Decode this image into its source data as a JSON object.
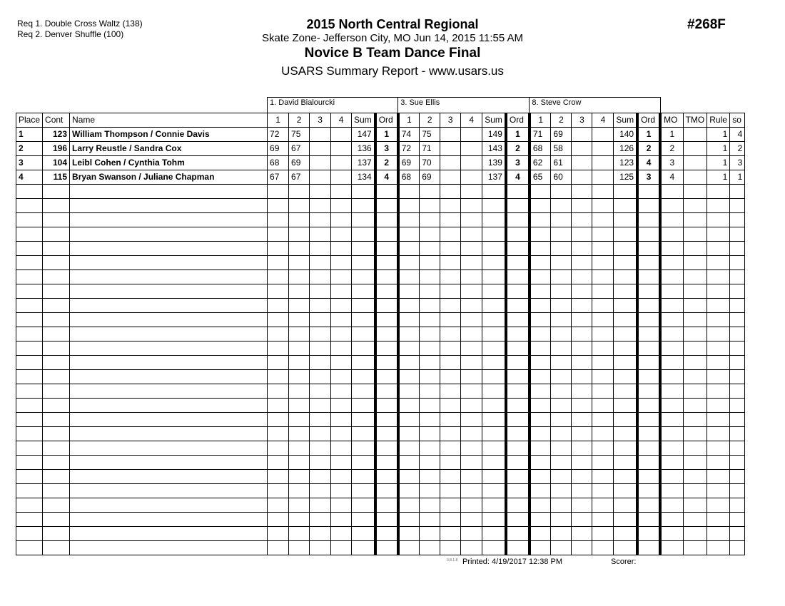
{
  "requirements": [
    "Req  1.  Double Cross Waltz (138)",
    "Req  2.  Denver Shuffle (100)"
  ],
  "header": {
    "title": "2015 North Central Regional",
    "location": "Skate Zone- Jefferson City, MO  Jun 14, 2015  11:55 AM",
    "event": "Novice B Team Dance Final",
    "report": "USARS Summary Report - www.usars.us",
    "event_number": "#268F"
  },
  "judges": [
    "1.  David Bialourcki",
    "3.  Sue Ellis",
    "8.  Steve  Crow"
  ],
  "columns": {
    "place": "Place",
    "cont": "Cont",
    "name": "Name",
    "judge_cols": [
      "1",
      "2",
      "3",
      "4",
      "Sum",
      "Ord"
    ],
    "mo": "MO",
    "tmo": "TMO",
    "rule": "Rule",
    "so": "so"
  },
  "rows": [
    {
      "place": "1",
      "cont": "123",
      "name": "William Thompson / Connie Davis",
      "judges": [
        [
          "72",
          "75",
          "",
          "",
          "147",
          "1"
        ],
        [
          "74",
          "75",
          "",
          "",
          "149",
          "1"
        ],
        [
          "71",
          "69",
          "",
          "",
          "140",
          "1"
        ]
      ],
      "mo": "1",
      "tmo": "",
      "rule": "1",
      "so": "4"
    },
    {
      "place": "2",
      "cont": "196",
      "name": "Larry Reustle / Sandra Cox",
      "judges": [
        [
          "69",
          "67",
          "",
          "",
          "136",
          "3"
        ],
        [
          "72",
          "71",
          "",
          "",
          "143",
          "2"
        ],
        [
          "68",
          "58",
          "",
          "",
          "126",
          "2"
        ]
      ],
      "mo": "2",
      "tmo": "",
      "rule": "1",
      "so": "2"
    },
    {
      "place": "3",
      "cont": "104",
      "name": "Leibl Cohen / Cynthia Tohm",
      "judges": [
        [
          "68",
          "69",
          "",
          "",
          "137",
          "2"
        ],
        [
          "69",
          "70",
          "",
          "",
          "139",
          "3"
        ],
        [
          "62",
          "61",
          "",
          "",
          "123",
          "4"
        ]
      ],
      "mo": "3",
      "tmo": "",
      "rule": "1",
      "so": "3"
    },
    {
      "place": "4",
      "cont": "115",
      "name": "Bryan Swanson / Juliane Chapman",
      "judges": [
        [
          "67",
          "67",
          "",
          "",
          "134",
          "4"
        ],
        [
          "68",
          "69",
          "",
          "",
          "137",
          "4"
        ],
        [
          "65",
          "60",
          "",
          "",
          "125",
          "3"
        ]
      ],
      "mo": "4",
      "tmo": "",
      "rule": "1",
      "so": "1"
    }
  ],
  "footer": {
    "version": "3.8.1.8",
    "printed": "Printed:  4/19/2017  12:38 PM",
    "scorer": "Scorer:"
  }
}
